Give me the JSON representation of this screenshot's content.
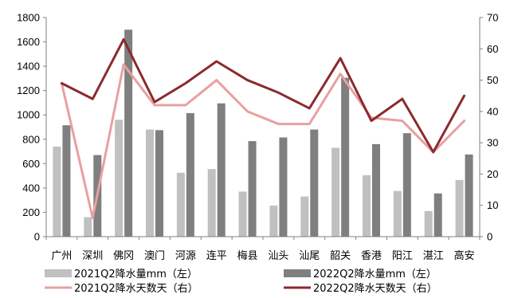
{
  "chart_data": {
    "type": "bar",
    "categories": [
      "广州",
      "深圳",
      "佛冈",
      "澳门",
      "河源",
      "连平",
      "梅县",
      "汕头",
      "汕尾",
      "韶关",
      "香港",
      "阳江",
      "湛江",
      "高安"
    ],
    "series": [
      {
        "name": "2021Q2降水量mm（左）",
        "kind": "bar",
        "axis": "left",
        "color": "#c0c0c0",
        "values": [
          740,
          160,
          960,
          880,
          525,
          555,
          370,
          255,
          330,
          730,
          505,
          375,
          210,
          465
        ]
      },
      {
        "name": "2022Q2降水量mm（左）",
        "kind": "bar",
        "axis": "left",
        "color": "#7f7f7f",
        "values": [
          915,
          670,
          1700,
          875,
          1015,
          1095,
          785,
          815,
          880,
          1305,
          760,
          850,
          355,
          675
        ]
      },
      {
        "name": "2021Q2降水天数天（右）",
        "kind": "line",
        "axis": "right",
        "color": "#e8a0a0",
        "values": [
          49,
          6,
          55,
          42,
          42,
          50,
          40,
          36,
          36,
          52,
          38,
          37,
          27,
          37
        ]
      },
      {
        "name": "2022Q2降水天数天（右）",
        "kind": "line",
        "axis": "right",
        "color": "#8b2a2e",
        "values": [
          49,
          44,
          63,
          43,
          49,
          56,
          50,
          46,
          41,
          57,
          37,
          44,
          27,
          45
        ]
      }
    ],
    "ylim_left": [
      0,
      1800
    ],
    "yticks_left": [
      0,
      200,
      400,
      600,
      800,
      1000,
      1200,
      1400,
      1600,
      1800
    ],
    "ylim_right": [
      0,
      70
    ],
    "yticks_right": [
      0,
      10,
      20,
      30,
      40,
      50,
      60,
      70
    ],
    "grid": false,
    "legend_position": "bottom"
  }
}
